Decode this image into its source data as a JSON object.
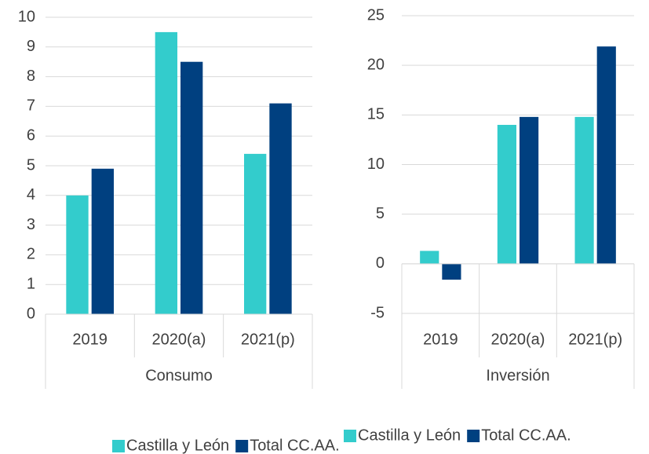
{
  "chart_data": [
    {
      "type": "bar",
      "xlabel": "Consumo",
      "categories": [
        "2019",
        "2020(a)",
        "2021(p)"
      ],
      "series": [
        {
          "name": "Castilla y León",
          "color": "#33cccc",
          "values": [
            4.0,
            9.5,
            5.4
          ]
        },
        {
          "name": "Total CC.AA.",
          "color": "#004080",
          "values": [
            4.9,
            8.5,
            7.1
          ]
        }
      ],
      "ylim": [
        0,
        10
      ],
      "yticks": [
        0,
        1,
        2,
        3,
        4,
        5,
        6,
        7,
        8,
        9,
        10
      ],
      "grid": true
    },
    {
      "type": "bar",
      "xlabel": "Inversión",
      "categories": [
        "2019",
        "2020(a)",
        "2021(p)"
      ],
      "series": [
        {
          "name": "Castilla y León",
          "color": "#33cccc",
          "values": [
            1.3,
            14.0,
            14.8
          ]
        },
        {
          "name": "Total CC.AA.",
          "color": "#004080",
          "values": [
            -1.6,
            14.8,
            21.9
          ]
        }
      ],
      "ylim": [
        -5,
        25
      ],
      "yticks": [
        -5,
        0,
        5,
        10,
        15,
        20,
        25
      ],
      "grid": true
    }
  ]
}
